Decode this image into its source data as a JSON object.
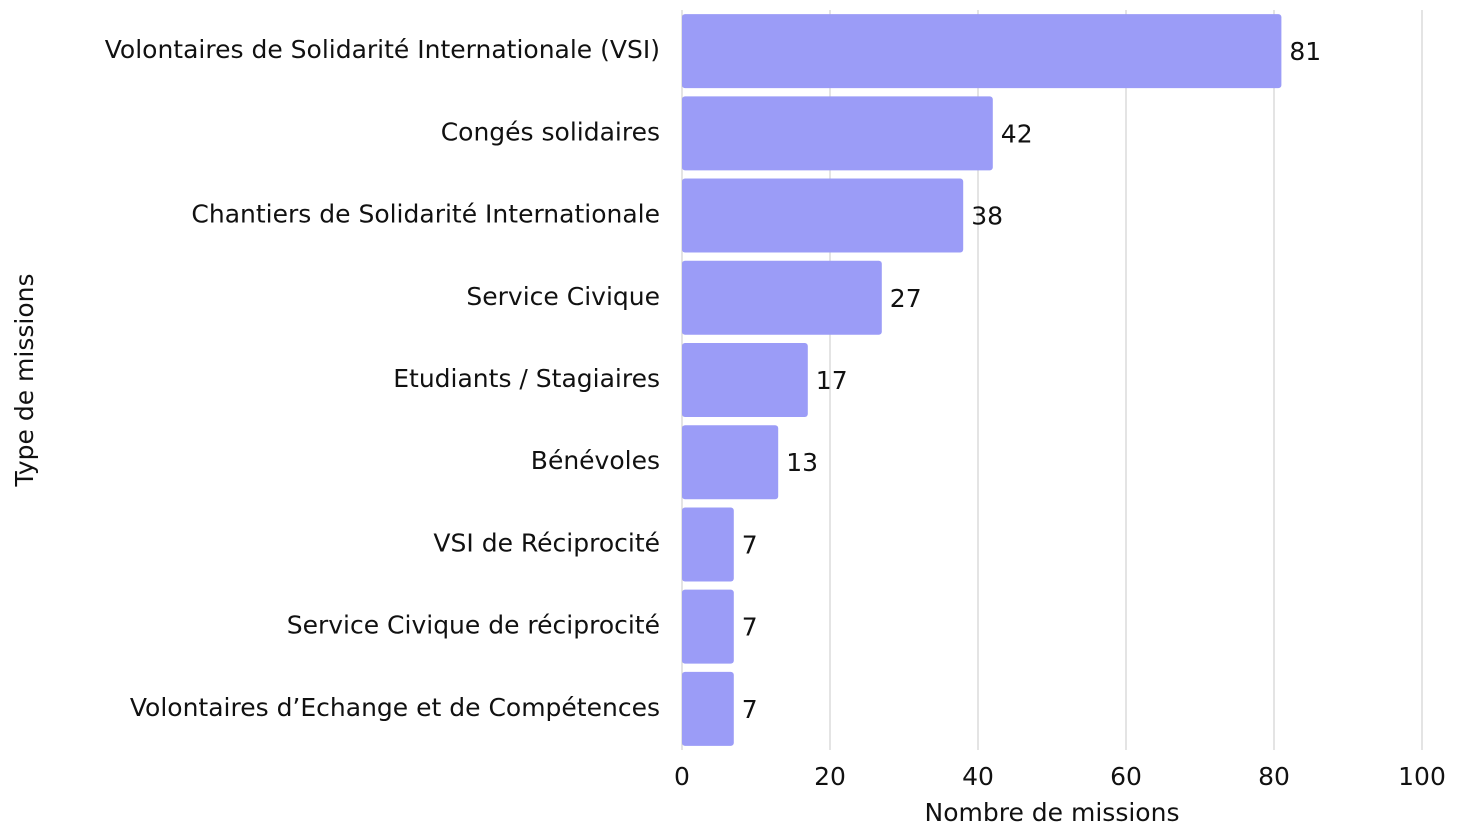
{
  "chart_data": {
    "type": "bar",
    "xlabel": "Nombre de missions",
    "ylabel": "Type de missions",
    "categories": [
      "Volontaires de Solidarité Internationale (VSI)",
      "Congés solidaires",
      "Chantiers de Solidarité Internationale",
      "Service Civique",
      "Etudiants / Stagiaires",
      "Bénévoles",
      "VSI de Réciprocité",
      "Service Civique de réciprocité",
      "Volontaires d’Echange et de Compétences"
    ],
    "values": [
      81,
      42,
      38,
      27,
      17,
      13,
      7,
      7,
      7
    ],
    "color": "#9b9cf7",
    "xlim": [
      0,
      100
    ],
    "xticks": [
      0,
      20,
      40,
      60,
      80,
      100
    ],
    "grid": true
  }
}
